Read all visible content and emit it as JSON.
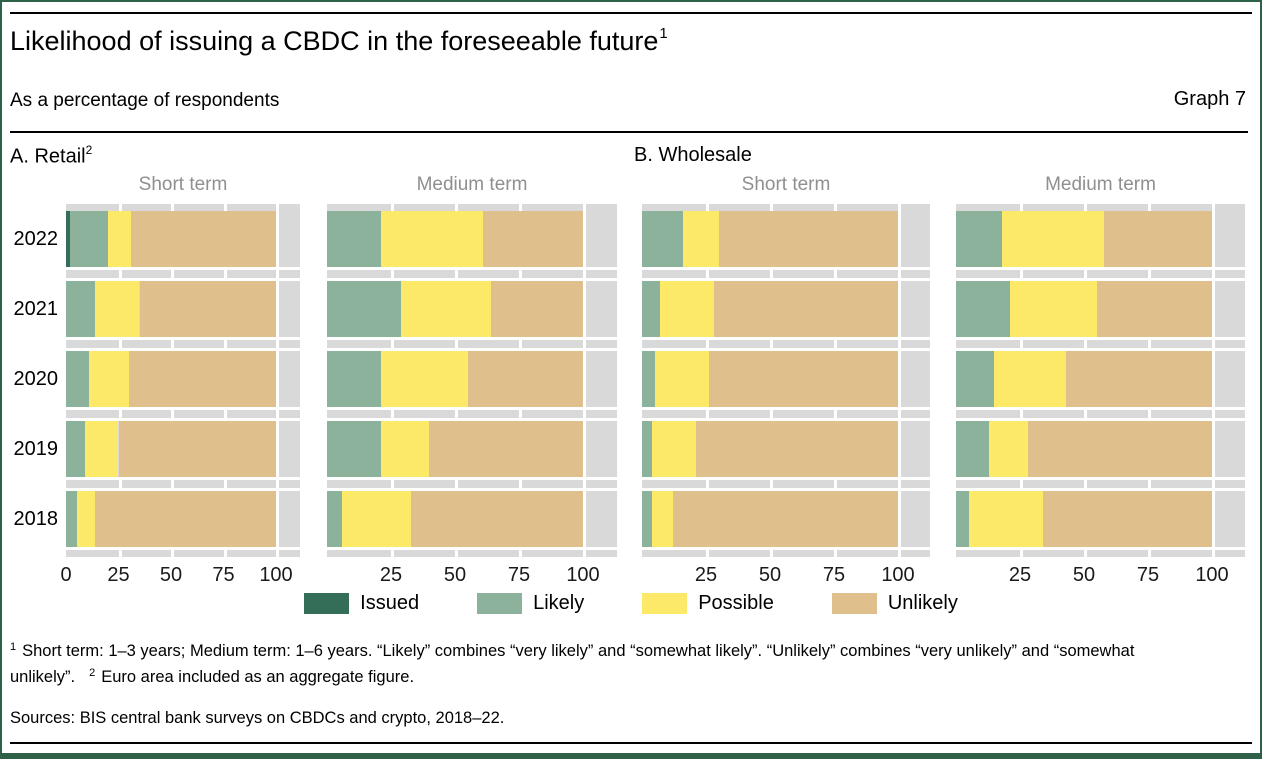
{
  "header": {
    "title": "Likelihood of issuing a CBDC in the foreseeable future",
    "title_footnote_marker": "1",
    "subtitle": "As a percentage of respondents",
    "graph_label": "Graph 7"
  },
  "panels": {
    "a_label": "A. Retail",
    "a_footnote_marker": "2",
    "b_label": "B. Wholesale"
  },
  "colors": {
    "issued": "#356e58",
    "likely": "#8cb29c",
    "possible": "#fde968",
    "unlikely": "#dfc08c",
    "plot_band": "#d9d9d9",
    "gridline": "#ffffff",
    "border_green": "#2f6048",
    "panel_title_grey": "#8f8f8f"
  },
  "legend": [
    {
      "label": "Issued",
      "color_key": "issued"
    },
    {
      "label": "Likely",
      "color_key": "likely"
    },
    {
      "label": "Possible",
      "color_key": "possible"
    },
    {
      "label": "Unlikely",
      "color_key": "unlikely"
    }
  ],
  "chart_data": [
    {
      "type": "bar",
      "orientation": "horizontal",
      "stacked": true,
      "panel": "A. Retail",
      "term": "Short term",
      "categories": [
        "2022",
        "2021",
        "2020",
        "2019",
        "2018"
      ],
      "series": [
        {
          "name": "Issued",
          "color_key": "issued",
          "values": [
            2,
            0,
            0,
            0,
            0
          ]
        },
        {
          "name": "Likely",
          "color_key": "likely",
          "values": [
            18,
            14,
            11,
            9,
            5
          ]
        },
        {
          "name": "Possible",
          "color_key": "possible",
          "values": [
            11,
            21,
            19,
            16,
            9
          ]
        },
        {
          "name": "Unlikely",
          "color_key": "unlikely",
          "values": [
            69,
            65,
            70,
            75,
            86
          ]
        }
      ],
      "xlim": [
        0,
        100
      ],
      "gridlines": [
        25,
        50,
        75,
        100
      ],
      "x_ticks": [
        {
          "label": "0",
          "value": 0
        },
        {
          "label": "25",
          "value": 25
        },
        {
          "label": "50",
          "value": 50
        },
        {
          "label": "75",
          "value": 75
        },
        {
          "label": "100",
          "value": 100
        }
      ]
    },
    {
      "type": "bar",
      "orientation": "horizontal",
      "stacked": true,
      "panel": "A. Retail",
      "term": "Medium term",
      "categories": [
        "2022",
        "2021",
        "2020",
        "2019",
        "2018"
      ],
      "series": [
        {
          "name": "Issued",
          "color_key": "issued",
          "values": [
            0,
            0,
            0,
            0,
            0
          ]
        },
        {
          "name": "Likely",
          "color_key": "likely",
          "values": [
            21,
            29,
            21,
            21,
            6
          ]
        },
        {
          "name": "Possible",
          "color_key": "possible",
          "values": [
            40,
            35,
            34,
            19,
            27
          ]
        },
        {
          "name": "Unlikely",
          "color_key": "unlikely",
          "values": [
            39,
            36,
            45,
            60,
            67
          ]
        }
      ],
      "xlim": [
        0,
        100
      ],
      "gridlines": [
        25,
        50,
        75,
        100
      ],
      "x_ticks": [
        {
          "label": "25",
          "value": 25
        },
        {
          "label": "50",
          "value": 50
        },
        {
          "label": "75",
          "value": 75
        },
        {
          "label": "100",
          "value": 100
        }
      ]
    },
    {
      "type": "bar",
      "orientation": "horizontal",
      "stacked": true,
      "panel": "B. Wholesale",
      "term": "Short term",
      "categories": [
        "2022",
        "2021",
        "2020",
        "2019",
        "2018"
      ],
      "series": [
        {
          "name": "Issued",
          "color_key": "issued",
          "values": [
            0,
            0,
            0,
            0,
            0
          ]
        },
        {
          "name": "Likely",
          "color_key": "likely",
          "values": [
            16,
            7,
            5,
            4,
            4
          ]
        },
        {
          "name": "Possible",
          "color_key": "possible",
          "values": [
            14,
            21,
            21,
            17,
            8
          ]
        },
        {
          "name": "Unlikely",
          "color_key": "unlikely",
          "values": [
            70,
            72,
            74,
            79,
            88
          ]
        }
      ],
      "xlim": [
        0,
        100
      ],
      "gridlines": [
        25,
        50,
        75,
        100
      ],
      "x_ticks": [
        {
          "label": "25",
          "value": 25
        },
        {
          "label": "50",
          "value": 50
        },
        {
          "label": "75",
          "value": 75
        },
        {
          "label": "100",
          "value": 100
        }
      ]
    },
    {
      "type": "bar",
      "orientation": "horizontal",
      "stacked": true,
      "panel": "B. Wholesale",
      "term": "Medium term",
      "categories": [
        "2022",
        "2021",
        "2020",
        "2019",
        "2018"
      ],
      "series": [
        {
          "name": "Issued",
          "color_key": "issued",
          "values": [
            0,
            0,
            0,
            0,
            0
          ]
        },
        {
          "name": "Likely",
          "color_key": "likely",
          "values": [
            18,
            21,
            15,
            13,
            5
          ]
        },
        {
          "name": "Possible",
          "color_key": "possible",
          "values": [
            40,
            34,
            28,
            15,
            29
          ]
        },
        {
          "name": "Unlikely",
          "color_key": "unlikely",
          "values": [
            42,
            45,
            57,
            72,
            66
          ]
        }
      ],
      "xlim": [
        0,
        100
      ],
      "gridlines": [
        25,
        50,
        75,
        100
      ],
      "x_ticks": [
        {
          "label": "25",
          "value": 25
        },
        {
          "label": "50",
          "value": 50
        },
        {
          "label": "75",
          "value": 75
        },
        {
          "label": "100",
          "value": 100
        }
      ]
    }
  ],
  "footnotes": {
    "marker1": "1",
    "text1": "Short term: 1–3 years; Medium term: 1–6 years. “Likely” combines “very likely” and “somewhat likely”. “Unlikely” combines “very unlikely” and “somewhat unlikely”.",
    "marker2": "2",
    "text2": "Euro area included as an aggregate figure."
  },
  "sources": "Sources: BIS central bank surveys on CBDCs and crypto, 2018–22."
}
